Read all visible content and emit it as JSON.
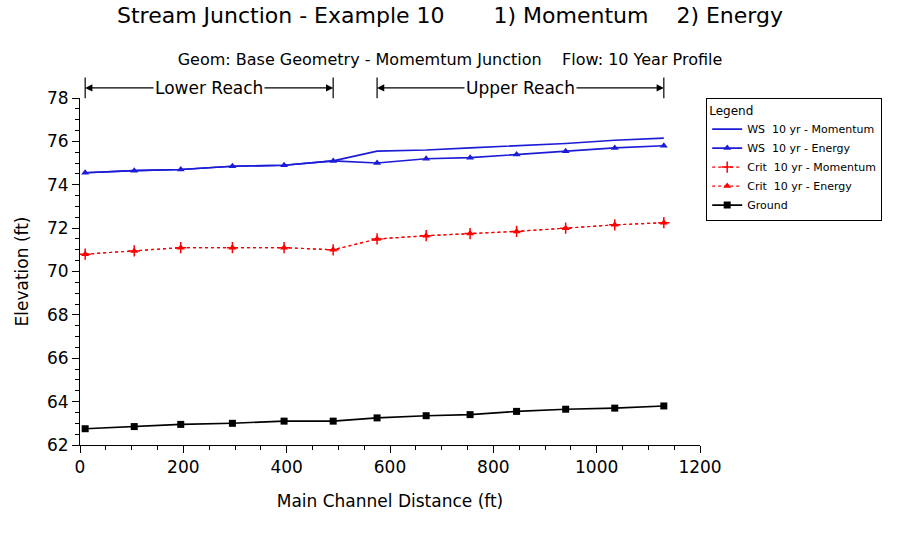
{
  "chart_data": {
    "type": "line",
    "title": "Stream Junction - Example 10       1) Momentum    2) Energy",
    "subtitle": "Geom: Base Geometry - Momemtum Junction    Flow: 10 Year Profile",
    "x_label": "Main Channel Distance (ft)",
    "y_label": "Elevation (ft)",
    "x": [
      10,
      105,
      195,
      295,
      395,
      490,
      575,
      670,
      755,
      845,
      940,
      1035,
      1130
    ],
    "series": [
      {
        "name": "WS  10 yr - Momentum",
        "color": "#1c1cd6",
        "marker": "none",
        "line_style": "solid",
        "values": [
          74.55,
          74.65,
          74.7,
          74.85,
          74.9,
          75.1,
          75.55,
          75.6,
          75.7,
          75.8,
          75.9,
          76.05,
          76.15
        ]
      },
      {
        "name": "WS  10 yr - Energy",
        "color": "#1c1cd6",
        "marker": "triangle",
        "line_style": "solid",
        "values": [
          74.55,
          74.65,
          74.7,
          74.85,
          74.9,
          75.1,
          75.0,
          75.2,
          75.25,
          75.4,
          75.55,
          75.7,
          75.8
        ]
      },
      {
        "name": "Crit  10 yr - Momentum",
        "color": "#ff0000",
        "marker": "plus",
        "line_style": "dot",
        "values": [
          70.8,
          70.95,
          71.1,
          71.1,
          71.1,
          71.0,
          71.5,
          71.65,
          71.75,
          71.85,
          72.0,
          72.15,
          72.25
        ]
      },
      {
        "name": "Crit  10 yr - Energy",
        "color": "#ff0000",
        "marker": "triangle",
        "line_style": "dot",
        "values": [
          70.8,
          70.95,
          71.1,
          71.1,
          71.1,
          71.0,
          71.5,
          71.65,
          71.75,
          71.85,
          72.0,
          72.15,
          72.25
        ]
      },
      {
        "name": "Ground",
        "color": "#000000",
        "marker": "square",
        "line_style": "solid",
        "values": [
          62.75,
          62.85,
          62.95,
          63.0,
          63.1,
          63.1,
          63.25,
          63.35,
          63.4,
          63.55,
          63.65,
          63.7,
          63.8
        ]
      }
    ],
    "xlim": [
      0,
      1200
    ],
    "xticks": [
      0,
      200,
      400,
      600,
      800,
      1000,
      1200
    ],
    "ylim": [
      62,
      78
    ],
    "yticks": [
      62,
      64,
      66,
      68,
      70,
      72,
      74,
      76,
      78
    ],
    "grid": false,
    "legend": "right",
    "legend_title": "Legend",
    "annotations": [
      {
        "text": "Lower Reach",
        "x0": 10,
        "x1": 490
      },
      {
        "text": "Upper Reach",
        "x0": 575,
        "x1": 1130
      }
    ]
  }
}
